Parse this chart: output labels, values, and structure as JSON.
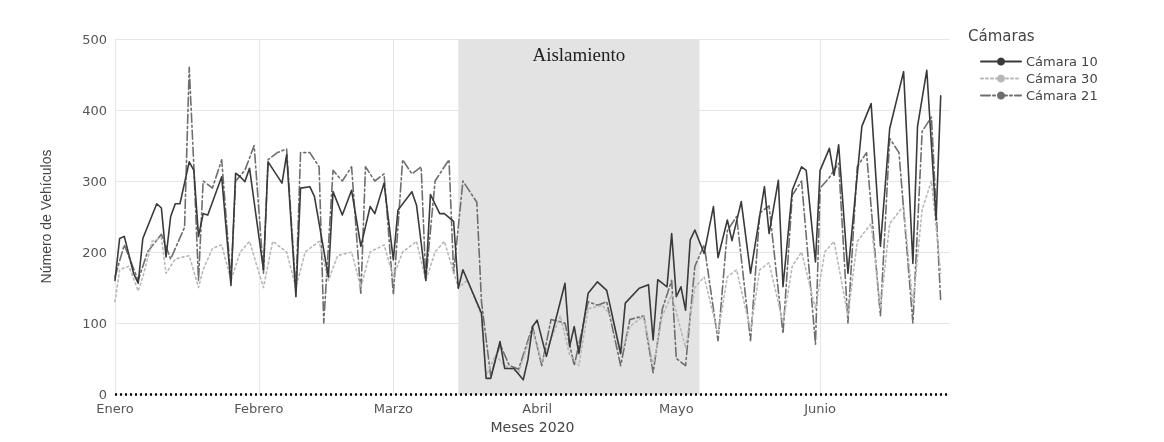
{
  "chart_data": {
    "type": "line",
    "xlabel": "Meses 2020",
    "ylabel": "Número de Vehículos",
    "legend_title": "Cámaras",
    "legend": "top right",
    "grid": true,
    "marker": "none",
    "xlim": [
      "2020-01-01",
      "2020-06-29"
    ],
    "xticks": [
      {
        "value": "2020-01-01",
        "label": "Enero"
      },
      {
        "value": "2020-02-01",
        "label": "Febrero"
      },
      {
        "value": "2020-03-01",
        "label": "Marzo"
      },
      {
        "value": "2020-04-01",
        "label": "Abril"
      },
      {
        "value": "2020-05-01",
        "label": "Mayo"
      },
      {
        "value": "2020-06-01",
        "label": "Junio"
      }
    ],
    "ylim": [
      0,
      500
    ],
    "yticks": [
      0,
      100,
      200,
      300,
      400,
      500
    ],
    "bands": [
      {
        "axis": "x",
        "from": "2020-03-15",
        "to": "2020-05-06",
        "label": "Aislamiento",
        "color": "#e3e3e3"
      }
    ],
    "ref_lines": [
      {
        "axis": "y",
        "value": 0,
        "color": "#000000",
        "line_style": "dotted"
      }
    ],
    "series": [
      {
        "name": "Cámara 10",
        "color": "#3a3a3a",
        "line_style": "solid",
        "x": [
          "2020-01-01",
          "2020-01-02",
          "2020-01-03",
          "2020-01-05",
          "2020-01-06",
          "2020-01-07",
          "2020-01-10",
          "2020-01-11",
          "2020-01-12",
          "2020-01-13",
          "2020-01-14",
          "2020-01-15",
          "2020-01-17",
          "2020-01-18",
          "2020-01-19",
          "2020-01-20",
          "2020-01-21",
          "2020-01-24",
          "2020-01-26",
          "2020-01-27",
          "2020-01-28",
          "2020-01-29",
          "2020-01-30",
          "2020-02-02",
          "2020-02-03",
          "2020-02-06",
          "2020-02-07",
          "2020-02-09",
          "2020-02-10",
          "2020-02-12",
          "2020-02-13",
          "2020-02-16",
          "2020-02-17",
          "2020-02-19",
          "2020-02-21",
          "2020-02-23",
          "2020-02-25",
          "2020-02-26",
          "2020-02-28",
          "2020-03-01",
          "2020-03-02",
          "2020-03-05",
          "2020-03-06",
          "2020-03-08",
          "2020-03-09",
          "2020-03-11",
          "2020-03-12",
          "2020-03-14",
          "2020-03-15",
          "2020-03-16",
          "2020-03-20",
          "2020-03-21",
          "2020-03-22",
          "2020-03-24",
          "2020-03-25",
          "2020-03-27",
          "2020-03-29",
          "2020-03-30",
          "2020-03-31",
          "2020-04-01",
          "2020-04-03",
          "2020-04-07",
          "2020-04-08",
          "2020-04-09",
          "2020-04-10",
          "2020-04-12",
          "2020-04-14",
          "2020-04-16",
          "2020-04-19",
          "2020-04-20",
          "2020-04-23",
          "2020-04-25",
          "2020-04-26",
          "2020-04-27",
          "2020-04-29",
          "2020-04-30",
          "2020-05-01",
          "2020-05-02",
          "2020-05-03",
          "2020-05-04",
          "2020-05-05",
          "2020-05-07",
          "2020-05-09",
          "2020-05-10",
          "2020-05-12",
          "2020-05-13",
          "2020-05-15",
          "2020-05-17",
          "2020-05-20",
          "2020-05-21",
          "2020-05-23",
          "2020-05-24",
          "2020-05-26",
          "2020-05-28",
          "2020-05-29",
          "2020-05-31",
          "2020-06-01",
          "2020-06-03",
          "2020-06-04",
          "2020-06-05",
          "2020-06-07",
          "2020-06-10",
          "2020-06-12",
          "2020-06-14",
          "2020-06-16",
          "2020-06-19",
          "2020-06-21",
          "2020-06-22",
          "2020-06-24",
          "2020-06-26",
          "2020-06-27"
        ],
        "values": [
          160,
          219,
          222,
          170,
          156,
          219,
          268,
          262,
          193,
          250,
          268,
          268,
          327,
          315,
          222,
          254,
          252,
          306,
          153,
          311,
          306,
          299,
          318,
          175,
          327,
          297,
          337,
          137,
          290,
          292,
          278,
          165,
          285,
          252,
          287,
          208,
          264,
          254,
          297,
          189,
          259,
          285,
          266,
          160,
          281,
          254,
          254,
          243,
          149,
          175,
          114,
          22,
          22,
          74,
          36,
          36,
          20,
          48,
          95,
          104,
          53,
          156,
          67,
          95,
          57,
          142,
          158,
          146,
          57,
          128,
          149,
          154,
          76,
          161,
          151,
          226,
          137,
          151,
          118,
          217,
          231,
          198,
          264,
          192,
          245,
          216,
          271,
          170,
          292,
          226,
          301,
          151,
          287,
          320,
          315,
          186,
          315,
          346,
          308,
          351,
          170,
          377,
          409,
          208,
          374,
          454,
          184,
          377,
          456,
          245,
          420
        ]
      },
      {
        "name": "Cámara 30",
        "color": "#b8b8b8",
        "line_style": "dotted",
        "x": [
          "2020-01-01",
          "2020-01-02",
          "2020-01-04",
          "2020-01-06",
          "2020-01-07",
          "2020-01-09",
          "2020-01-11",
          "2020-01-12",
          "2020-01-14",
          "2020-01-17",
          "2020-01-19",
          "2020-01-20",
          "2020-01-22",
          "2020-01-24",
          "2020-01-26",
          "2020-01-28",
          "2020-01-30",
          "2020-02-02",
          "2020-02-04",
          "2020-02-07",
          "2020-02-09",
          "2020-02-11",
          "2020-02-14",
          "2020-02-16",
          "2020-02-18",
          "2020-02-21",
          "2020-02-23",
          "2020-02-25",
          "2020-02-28",
          "2020-03-01",
          "2020-03-03",
          "2020-03-06",
          "2020-03-08",
          "2020-03-10",
          "2020-03-12",
          "2020-03-15",
          "2020-03-17",
          "2020-03-20",
          "2020-03-21",
          "2020-03-23",
          "2020-03-25",
          "2020-03-28",
          "2020-03-31",
          "2020-04-02",
          "2020-04-06",
          "2020-04-08",
          "2020-04-10",
          "2020-04-12",
          "2020-04-15",
          "2020-04-17",
          "2020-04-19",
          "2020-04-21",
          "2020-04-24",
          "2020-04-26",
          "2020-04-28",
          "2020-04-30",
          "2020-05-03",
          "2020-05-05",
          "2020-05-07",
          "2020-05-10",
          "2020-05-12",
          "2020-05-14",
          "2020-05-17",
          "2020-05-19",
          "2020-05-21",
          "2020-05-24",
          "2020-05-26",
          "2020-05-28",
          "2020-05-31",
          "2020-06-02",
          "2020-06-04",
          "2020-06-07",
          "2020-06-09",
          "2020-06-12",
          "2020-06-14",
          "2020-06-16",
          "2020-06-19",
          "2020-06-21",
          "2020-06-23",
          "2020-06-25",
          "2020-06-27"
        ],
        "values": [
          130,
          175,
          180,
          145,
          165,
          215,
          220,
          170,
          190,
          195,
          150,
          175,
          205,
          210,
          160,
          200,
          215,
          150,
          215,
          200,
          150,
          200,
          215,
          160,
          195,
          200,
          150,
          200,
          210,
          165,
          200,
          215,
          160,
          200,
          215,
          150,
          160,
          110,
          25,
          55,
          40,
          30,
          90,
          45,
          110,
          55,
          40,
          120,
          125,
          110,
          55,
          95,
          110,
          40,
          110,
          140,
          65,
          150,
          165,
          85,
          165,
          175,
          90,
          175,
          185,
          100,
          180,
          200,
          120,
          200,
          215,
          110,
          215,
          240,
          120,
          240,
          265,
          125,
          260,
          300,
          170
        ]
      },
      {
        "name": "Cámara 21",
        "color": "#6e6e6e",
        "line_style": "dashdot",
        "x": [
          "2020-01-01",
          "2020-01-03",
          "2020-01-06",
          "2020-01-08",
          "2020-01-11",
          "2020-01-13",
          "2020-01-16",
          "2020-01-17",
          "2020-01-18",
          "2020-01-19",
          "2020-01-20",
          "2020-01-22",
          "2020-01-24",
          "2020-01-26",
          "2020-01-27",
          "2020-01-29",
          "2020-01-31",
          "2020-02-02",
          "2020-02-03",
          "2020-02-05",
          "2020-02-07",
          "2020-02-09",
          "2020-02-10",
          "2020-02-12",
          "2020-02-14",
          "2020-02-15",
          "2020-02-17",
          "2020-02-19",
          "2020-02-21",
          "2020-02-23",
          "2020-02-24",
          "2020-02-26",
          "2020-02-28",
          "2020-03-01",
          "2020-03-03",
          "2020-03-05",
          "2020-03-07",
          "2020-03-08",
          "2020-03-10",
          "2020-03-12",
          "2020-03-13",
          "2020-03-14",
          "2020-03-16",
          "2020-03-19",
          "2020-03-20",
          "2020-03-22",
          "2020-03-24",
          "2020-03-26",
          "2020-03-28",
          "2020-03-31",
          "2020-04-02",
          "2020-04-04",
          "2020-04-07",
          "2020-04-09",
          "2020-04-12",
          "2020-04-14",
          "2020-04-16",
          "2020-04-19",
          "2020-04-21",
          "2020-04-24",
          "2020-04-26",
          "2020-04-28",
          "2020-04-30",
          "2020-05-01",
          "2020-05-03",
          "2020-05-05",
          "2020-05-07",
          "2020-05-10",
          "2020-05-12",
          "2020-05-14",
          "2020-05-17",
          "2020-05-19",
          "2020-05-21",
          "2020-05-24",
          "2020-05-26",
          "2020-05-28",
          "2020-05-31",
          "2020-06-01",
          "2020-06-03",
          "2020-06-05",
          "2020-06-07",
          "2020-06-09",
          "2020-06-11",
          "2020-06-14",
          "2020-06-16",
          "2020-06-18",
          "2020-06-21",
          "2020-06-23",
          "2020-06-25",
          "2020-06-27"
        ],
        "values": [
          165,
          210,
          160,
          200,
          225,
          190,
          235,
          460,
          320,
          160,
          300,
          290,
          330,
          160,
          300,
          315,
          350,
          170,
          330,
          340,
          345,
          145,
          340,
          340,
          320,
          100,
          315,
          300,
          320,
          140,
          320,
          300,
          310,
          140,
          330,
          310,
          320,
          160,
          300,
          320,
          330,
          170,
          300,
          270,
          130,
          25,
          70,
          40,
          35,
          95,
          40,
          105,
          100,
          40,
          130,
          125,
          130,
          40,
          105,
          110,
          30,
          120,
          160,
          50,
          40,
          180,
          210,
          75,
          230,
          250,
          75,
          255,
          265,
          85,
          280,
          300,
          70,
          290,
          305,
          325,
          100,
          320,
          340,
          110,
          360,
          340,
          100,
          370,
          390,
          130
        ]
      }
    ]
  }
}
